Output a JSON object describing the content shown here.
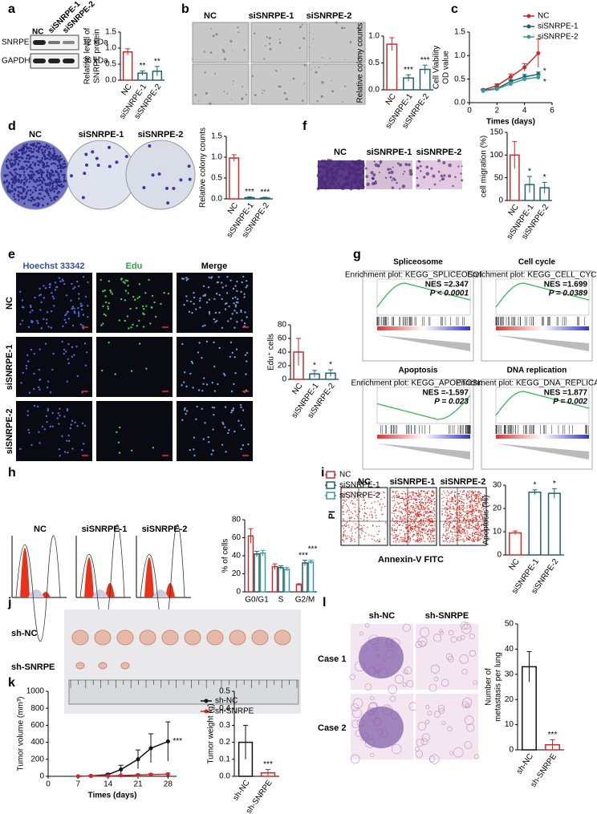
{
  "panels": {
    "letters": [
      "a",
      "b",
      "c",
      "d",
      "e",
      "f",
      "g",
      "h",
      "i",
      "j",
      "k",
      "l"
    ],
    "a": {
      "lanes": [
        "NC",
        "siSNRPE-1",
        "siSNRPE-2"
      ],
      "bands": [
        "SNRPE",
        "GAPDH"
      ],
      "sizes": [
        "12 kDa",
        "36 kDa"
      ]
    },
    "b": {
      "groups": [
        "NC",
        "siSNRPE-1",
        "siSNRPE-2"
      ]
    },
    "d": {
      "groups": [
        "NC",
        "siSNRPE-1",
        "siSNRPE-2"
      ]
    },
    "f": {
      "groups": [
        "NC",
        "siSNRPE-1",
        "siSNRPE-2"
      ]
    },
    "e": {
      "columns": [
        "Hoechst 33342",
        "Edu",
        "Merge"
      ],
      "rows": [
        "NC",
        "siSNRPE-1",
        "siSNRPE-2"
      ]
    },
    "g": {
      "plots": [
        {
          "title": "Spliceosome",
          "subtitle": "Enrichment plot: KEGG_SPLICEOSOME",
          "nes": "NES =2.347",
          "p": "P < 0.0001"
        },
        {
          "title": "Cell cycle",
          "subtitle": "Enrichment plot: KEGG_CELL_CYCLE",
          "nes": "NES =1.699",
          "p": "P = 0.0389"
        },
        {
          "title": "Apoptosis",
          "subtitle": "Enrichment plot: KEGG_APOPTOSIS",
          "nes": "NES =-1.597",
          "p": "P = 0.023"
        },
        {
          "title": "DNA replication",
          "subtitle": "Enrichment plot: KEGG_DNA_REPLICATION",
          "nes": "NES =1.877",
          "p": "P = 0.002"
        }
      ]
    },
    "h": {
      "groups": [
        "NC",
        "siSNRPE-1",
        "siSNRPE-2"
      ]
    },
    "i": {
      "groups": [
        "NC",
        "siSNRPE-1",
        "siSNRPE-2"
      ],
      "yaxis": "PI",
      "xaxis": "Annexin-V FITC"
    },
    "j": {
      "rows": [
        "sh-NC",
        "sh-SNRPE"
      ]
    },
    "l": {
      "columns": [
        "sh-NC",
        "sh-SNRPE"
      ],
      "rows": [
        "Case 1",
        "Case 2"
      ]
    }
  },
  "chart_data": [
    {
      "type": "bar",
      "ylabel": [
        "Relative level of",
        "SNRPE protein"
      ],
      "categories": [
        "NC",
        "siSNRPE-1",
        "siSNRPE-2"
      ],
      "values": [
        0.88,
        0.22,
        0.28
      ],
      "errors": [
        0.1,
        0.07,
        0.15
      ],
      "annotations": [
        null,
        "**",
        "**"
      ],
      "colors": [
        "#cc2a2a",
        "#1d6470",
        "#1d6470"
      ],
      "ylim": [
        0,
        1.5
      ],
      "yticks": [
        {
          "value": 0,
          "label": "0.0"
        },
        {
          "value": 0.5,
          "label": "0.5"
        },
        {
          "value": 1,
          "label": "1.0"
        },
        {
          "value": 1.5,
          "label": "1.5"
        }
      ]
    },
    {
      "type": "bar",
      "ylabel": "Relative colony counts",
      "categories": [
        "NC",
        "siSNRPE-1",
        "siSNRPE-2"
      ],
      "values": [
        0.85,
        0.22,
        0.38
      ],
      "errors": [
        0.12,
        0.06,
        0.08
      ],
      "annotations": [
        null,
        "***",
        "***"
      ],
      "colors": [
        "#cc2a2a",
        "#1d6470",
        "#1d6470"
      ],
      "ylim": [
        0,
        1.0
      ],
      "yticks": [
        {
          "value": 0,
          "label": "0.0"
        },
        {
          "value": 0.5,
          "label": "0.5"
        },
        {
          "value": 1,
          "label": "1.0"
        }
      ]
    },
    {
      "type": "line",
      "ylabel": [
        "Cell Viability",
        "OD value"
      ],
      "xlabel": "Times (days)",
      "xlim": [
        0,
        6
      ],
      "xticks": [
        0,
        2,
        4,
        6
      ],
      "ylim": [
        0,
        1.5
      ],
      "yticks": [
        {
          "value": 0,
          "label": "0.0"
        },
        {
          "value": 0.5,
          "label": "0.5"
        },
        {
          "value": 1,
          "label": "1.0"
        },
        {
          "value": 1.5,
          "label": "1.5"
        }
      ],
      "x": [
        1,
        2,
        3,
        4,
        5
      ],
      "series": [
        {
          "name": "NC",
          "color": "#cc2a2a",
          "values": [
            0.27,
            0.36,
            0.55,
            0.75,
            1.05
          ],
          "errors": [
            0.02,
            0.04,
            0.06,
            0.08,
            0.3
          ]
        },
        {
          "name": "siSNRPE-1",
          "color": "#1d5f6b",
          "values": [
            0.26,
            0.3,
            0.45,
            0.55,
            0.6
          ],
          "errors": [
            0.02,
            0.03,
            0.04,
            0.05,
            0.05
          ],
          "annotation": "*"
        },
        {
          "name": "siSNRPE-2",
          "color": "#3a9aa0",
          "values": [
            0.25,
            0.29,
            0.4,
            0.5,
            0.54
          ],
          "errors": [
            0.02,
            0.03,
            0.04,
            0.04,
            0.05
          ],
          "annotation": "*"
        }
      ]
    },
    {
      "type": "bar",
      "ylabel": "Relative colony counts",
      "categories": [
        "NC",
        "siSNRPE-1",
        "siSNRPE-2"
      ],
      "values": [
        0.98,
        0.03,
        0.02
      ],
      "errors": [
        0.08,
        0.02,
        0.02
      ],
      "annotations": [
        null,
        "***",
        "***"
      ],
      "colors": [
        "#cc2a2a",
        "#1d6470",
        "#1d6470"
      ],
      "ylim": [
        0,
        1.5
      ],
      "yticks": [
        {
          "value": 0,
          "label": "0.0"
        },
        {
          "value": 0.5,
          "label": "0.5"
        },
        {
          "value": 1,
          "label": "1.0"
        },
        {
          "value": 1.5,
          "label": "1.5"
        }
      ]
    },
    {
      "type": "bar",
      "ylabel": "cell migration (%)",
      "categories": [
        "NC",
        "siSNRPE-1",
        "siSNRPE-2"
      ],
      "values": [
        100,
        35,
        28
      ],
      "errors": [
        30,
        18,
        12
      ],
      "annotations": [
        null,
        "*",
        "*"
      ],
      "colors": [
        "#cc2a2a",
        "#1d6470",
        "#1d6470"
      ],
      "ylim": [
        0,
        150
      ],
      "yticks": [
        0,
        50,
        100,
        150
      ]
    },
    {
      "type": "bar",
      "ylabel": "Edu⁺ cells",
      "categories": [
        "NC",
        "siSNRPE-1",
        "siSNRPE-2"
      ],
      "values": [
        40,
        8,
        9
      ],
      "errors": [
        20,
        5,
        5
      ],
      "annotations": [
        null,
        "*",
        "*"
      ],
      "colors": [
        "#cc2a2a",
        "#1d6470",
        "#1d6470"
      ],
      "ylim": [
        0,
        80
      ],
      "yticks": [
        0,
        20,
        40,
        60,
        80
      ]
    },
    {
      "type": "grouped_bar",
      "ylabel": "% of cells",
      "categories": [
        "G0/G1",
        "S",
        "G2/M"
      ],
      "ylim": [
        0,
        80
      ],
      "yticks": [
        0,
        20,
        40,
        60,
        80
      ],
      "series": [
        {
          "name": "NC",
          "color": "#cc2a2a",
          "values": [
            62,
            28,
            8
          ],
          "errors": [
            8,
            3,
            1
          ]
        },
        {
          "name": "siSNRPE-1",
          "color": "#1d5f6b",
          "values": [
            42,
            27,
            32
          ],
          "errors": [
            3,
            2,
            3
          ],
          "annotations": [
            null,
            null,
            "***"
          ]
        },
        {
          "name": "siSNRPE-2",
          "color": "#3a9aa0",
          "values": [
            43,
            25,
            33
          ],
          "errors": [
            3,
            2,
            2
          ],
          "annotations": [
            null,
            null,
            "***"
          ]
        }
      ]
    },
    {
      "type": "bar",
      "ylabel": "Apoptosis (%)",
      "categories": [
        "NC",
        "siSNRPE-1",
        "siSNRPE-2"
      ],
      "values": [
        9.5,
        27,
        26.5
      ],
      "errors": [
        0.8,
        1,
        2
      ],
      "annotations": [
        null,
        "*",
        "*"
      ],
      "colors": [
        "#cc2a2a",
        "#1d6470",
        "#1d6470"
      ],
      "ylim": [
        0,
        30
      ],
      "yticks": [
        0,
        10,
        20,
        30
      ]
    },
    {
      "type": "line",
      "ylabel": "Tumor volume (mm³)",
      "xlabel": "Times (days)",
      "xlim": [
        0,
        30
      ],
      "xticks": [
        0,
        7,
        14,
        21,
        28
      ],
      "ylim": [
        0,
        1000
      ],
      "yticks": [
        0,
        200,
        400,
        600,
        800,
        1000
      ],
      "x": [
        7,
        10,
        14,
        17,
        21,
        24,
        28
      ],
      "series": [
        {
          "name": "sh-NC",
          "color": "#111111",
          "values": [
            0,
            5,
            20,
            80,
            200,
            330,
            410
          ],
          "errors": [
            0,
            5,
            15,
            50,
            110,
            170,
            230
          ],
          "annotation": "***"
        },
        {
          "name": "sh-SNRPE",
          "color": "#cc2a2a",
          "values": [
            0,
            3,
            5,
            10,
            15,
            20,
            25
          ],
          "errors": [
            0,
            2,
            3,
            5,
            8,
            10,
            12
          ]
        }
      ]
    },
    {
      "type": "bar",
      "ylabel": "Tumor weight (g)",
      "categories": [
        "sh-NC",
        "sh-SNRPE"
      ],
      "values": [
        0.2,
        0.02
      ],
      "errors": [
        0.1,
        0.02
      ],
      "annotations": [
        null,
        "***"
      ],
      "colors": [
        "#111111",
        "#cc2a2a"
      ],
      "ylim": [
        0,
        0.5
      ],
      "yticks": [
        {
          "value": 0,
          "label": "0.0"
        },
        {
          "value": 0.1,
          "label": "0.1"
        },
        {
          "value": 0.2,
          "label": "0.2"
        },
        {
          "value": 0.3,
          "label": "0.3"
        },
        {
          "value": 0.4,
          "label": "0.4"
        },
        {
          "value": 0.5,
          "label": "0.5"
        }
      ]
    },
    {
      "type": "bar",
      "ylabel": [
        "Number of",
        "metastasis per lung"
      ],
      "categories": [
        "sh-NC",
        "sh-SNRPE"
      ],
      "values": [
        33,
        2
      ],
      "errors": [
        6,
        2
      ],
      "annotations": [
        null,
        "***"
      ],
      "colors": [
        "#111111",
        "#cc2a2a"
      ],
      "ylim": [
        0,
        50
      ],
      "yticks": [
        0,
        10,
        20,
        30,
        40,
        50
      ]
    }
  ]
}
